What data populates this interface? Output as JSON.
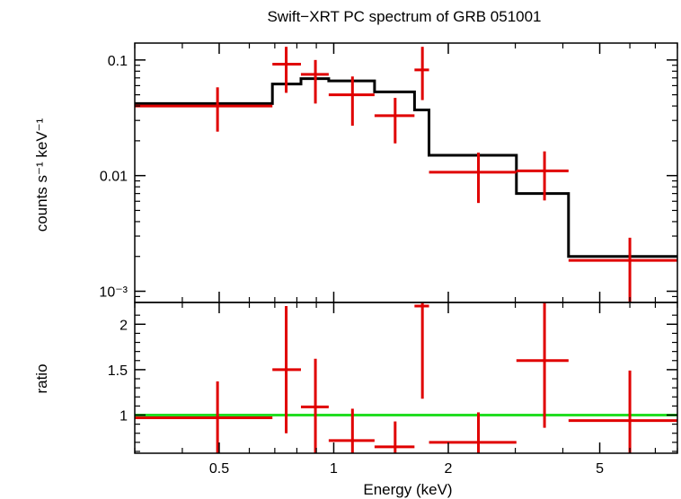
{
  "chart_data": [
    {
      "type": "scatter",
      "title": "Swift−XRT PC spectrum of GRB 051001",
      "xlabel": "",
      "ylabel": "counts s⁻¹ keV⁻¹",
      "x_scale": "log",
      "y_scale": "log",
      "xlim": [
        0.3,
        8.0
      ],
      "ylim": [
        0.0008,
        0.14
      ],
      "y_ticks": [
        {
          "value": 0.1,
          "label": "0.1"
        },
        {
          "value": 0.01,
          "label": "0.01"
        },
        {
          "value": 0.001,
          "label": "10⁻³"
        }
      ],
      "data_color": "#e00000",
      "model_color": "#000000",
      "series": [
        {
          "kind": "data_points_with_errors",
          "points": [
            {
              "x": 0.495,
              "xlo": 0.3,
              "xhi": 0.69,
              "y": 0.04,
              "ylo": 0.024,
              "yhi": 0.058
            },
            {
              "x": 0.75,
              "xlo": 0.69,
              "xhi": 0.82,
              "y": 0.092,
              "ylo": 0.052,
              "yhi": 0.13
            },
            {
              "x": 0.895,
              "xlo": 0.82,
              "xhi": 0.97,
              "y": 0.075,
              "ylo": 0.042,
              "yhi": 0.1
            },
            {
              "x": 1.12,
              "xlo": 0.97,
              "xhi": 1.28,
              "y": 0.05,
              "ylo": 0.027,
              "yhi": 0.072
            },
            {
              "x": 1.45,
              "xlo": 1.28,
              "xhi": 1.63,
              "y": 0.033,
              "ylo": 0.019,
              "yhi": 0.047
            },
            {
              "x": 1.71,
              "xlo": 1.63,
              "xhi": 1.78,
              "y": 0.082,
              "ylo": 0.045,
              "yhi": 0.13
            },
            {
              "x": 2.4,
              "xlo": 1.78,
              "xhi": 3.02,
              "y": 0.0107,
              "ylo": 0.0058,
              "yhi": 0.0158
            },
            {
              "x": 3.58,
              "xlo": 3.02,
              "xhi": 4.14,
              "y": 0.011,
              "ylo": 0.0061,
              "yhi": 0.0162
            },
            {
              "x": 6.0,
              "xlo": 4.14,
              "xhi": 8.0,
              "y": 0.00185,
              "ylo": 0.0008,
              "yhi": 0.0029
            }
          ]
        },
        {
          "kind": "model_step",
          "steps": [
            {
              "xlo": 0.3,
              "xhi": 0.69,
              "y": 0.042
            },
            {
              "xlo": 0.69,
              "xhi": 0.82,
              "y": 0.062
            },
            {
              "xlo": 0.82,
              "xhi": 0.97,
              "y": 0.069
            },
            {
              "xlo": 0.97,
              "xhi": 1.28,
              "y": 0.066
            },
            {
              "xlo": 1.28,
              "xhi": 1.63,
              "y": 0.053
            },
            {
              "xlo": 1.63,
              "xhi": 1.78,
              "y": 0.037
            },
            {
              "xlo": 1.78,
              "xhi": 3.02,
              "y": 0.015
            },
            {
              "xlo": 3.02,
              "xhi": 4.14,
              "y": 0.007
            },
            {
              "xlo": 4.14,
              "xhi": 8.0,
              "y": 0.002
            }
          ]
        }
      ]
    },
    {
      "type": "scatter",
      "title": "",
      "xlabel": "Energy (keV)",
      "ylabel": "ratio",
      "x_scale": "log",
      "y_scale": "linear",
      "xlim": [
        0.3,
        8.0
      ],
      "ylim": [
        0.58,
        2.24
      ],
      "x_ticks": [
        {
          "value": 0.5,
          "label": "0.5"
        },
        {
          "value": 1,
          "label": "1"
        },
        {
          "value": 2,
          "label": "2"
        },
        {
          "value": 5,
          "label": "5"
        }
      ],
      "y_ticks": [
        {
          "value": 1,
          "label": "1"
        },
        {
          "value": 1.5,
          "label": "1.5"
        },
        {
          "value": 2,
          "label": "2"
        }
      ],
      "reference_line": {
        "y": 1.0,
        "color": "#22dd22"
      },
      "data_color": "#e00000",
      "series": [
        {
          "kind": "data_points_with_errors",
          "points": [
            {
              "x": 0.495,
              "xlo": 0.3,
              "xhi": 0.69,
              "y": 0.97,
              "ylo": 0.58,
              "yhi": 1.37
            },
            {
              "x": 0.75,
              "xlo": 0.69,
              "xhi": 0.82,
              "y": 1.5,
              "ylo": 0.8,
              "yhi": 2.2
            },
            {
              "x": 0.895,
              "xlo": 0.82,
              "xhi": 0.97,
              "y": 1.09,
              "ylo": 0.58,
              "yhi": 1.62
            },
            {
              "x": 1.12,
              "xlo": 0.97,
              "xhi": 1.28,
              "y": 0.72,
              "ylo": 0.58,
              "yhi": 1.07
            },
            {
              "x": 1.45,
              "xlo": 1.28,
              "xhi": 1.63,
              "y": 0.65,
              "ylo": 0.58,
              "yhi": 0.93
            },
            {
              "x": 1.71,
              "xlo": 1.63,
              "xhi": 1.78,
              "y": 2.2,
              "ylo": 1.18,
              "yhi": 2.24
            },
            {
              "x": 2.4,
              "xlo": 1.78,
              "xhi": 3.02,
              "y": 0.7,
              "ylo": 0.58,
              "yhi": 1.03
            },
            {
              "x": 3.58,
              "xlo": 3.02,
              "xhi": 4.14,
              "y": 1.6,
              "ylo": 0.86,
              "yhi": 2.24
            },
            {
              "x": 6.0,
              "xlo": 4.14,
              "xhi": 8.0,
              "y": 0.94,
              "ylo": 0.58,
              "yhi": 1.49
            }
          ]
        }
      ]
    }
  ]
}
